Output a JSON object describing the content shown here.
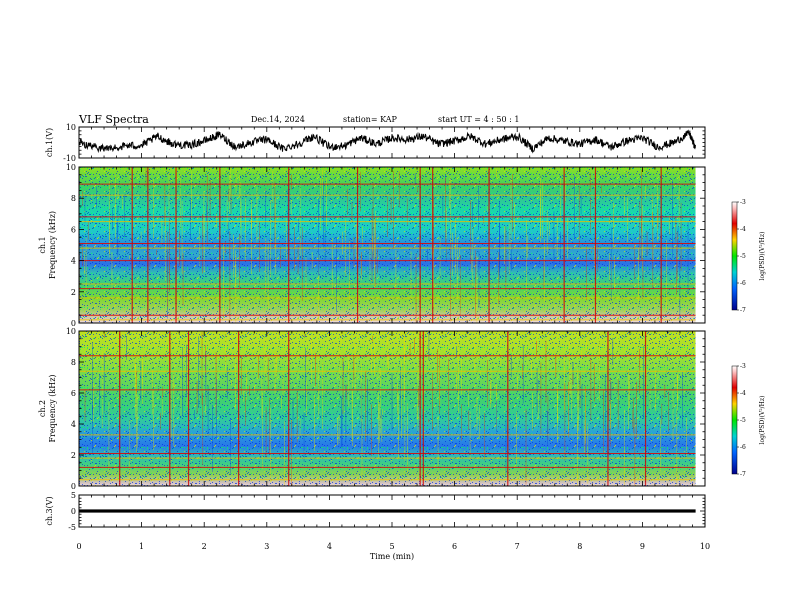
{
  "header": {
    "title": "VLF Spectra",
    "date": "Dec.14, 2024",
    "station": "station= KAP",
    "start": "start  UT =  4 : 50 : 1"
  },
  "colors": {
    "spectrogram_low": "#0000c8",
    "spectrogram_mid": "#00e6a0",
    "spectrogram_high": "#d20000",
    "trace": "#000000"
  },
  "chart_data": [
    {
      "type": "line",
      "name": "ch1-waveform",
      "ylabel": "ch.1(V)",
      "ylim": [
        -10,
        10
      ],
      "yticks": [
        {
          "value": 10,
          "label": "10"
        },
        {
          "value": -10,
          "label": "-10"
        }
      ],
      "x": [
        0,
        0.25,
        0.5,
        0.75,
        1.0,
        1.25,
        1.5,
        1.75,
        2.0,
        2.25,
        2.5,
        2.75,
        3.0,
        3.25,
        3.5,
        3.75,
        4.0,
        4.25,
        4.5,
        4.75,
        5.0,
        5.25,
        5.5,
        5.75,
        6.0,
        6.25,
        6.5,
        6.75,
        7.0,
        7.25,
        7.5,
        7.75,
        8.0,
        8.25,
        8.5,
        8.75,
        9.0,
        9.25,
        9.5,
        9.75,
        9.85
      ],
      "values": [
        0,
        -3,
        -4,
        -2,
        -2,
        4,
        -1,
        -2,
        1,
        5,
        -3,
        0,
        2,
        -4,
        -1,
        4,
        -3,
        -2,
        3,
        -1,
        3,
        2,
        4,
        -1,
        1,
        4,
        -1,
        2,
        4,
        -4,
        3,
        1,
        -1,
        2,
        -3,
        1,
        3,
        -3,
        0,
        6,
        -4
      ],
      "grid": false
    },
    {
      "type": "heatmap",
      "name": "ch1-spectrogram",
      "ylabel": "ch.1\nFrequency (kHz)",
      "ylim": [
        0,
        10
      ],
      "yticks": [
        0,
        2,
        4,
        6,
        8,
        10
      ],
      "x_range": [
        0,
        9.85
      ],
      "colorbar": {
        "label": "log(PSD)(V²/Hz)",
        "ticks": [
          -3,
          -4,
          -5,
          -6,
          -7
        ],
        "range": [
          -7,
          -3
        ]
      },
      "horizontal_lines_khz": [
        0.2,
        0.5,
        1.6,
        2.2,
        2.5,
        4.0,
        4.8,
        5.1,
        6.5,
        6.8,
        8.2,
        8.9
      ],
      "vertical_lines_min": [
        0.85,
        1.1,
        1.55,
        2.25,
        3.35,
        4.45,
        5.45,
        5.65,
        6.55,
        7.75,
        8.25,
        9.3
      ],
      "grid": false
    },
    {
      "type": "heatmap",
      "name": "ch2-spectrogram",
      "ylabel": "ch.2\nFrequency (kHz)",
      "ylim": [
        0,
        10
      ],
      "yticks": [
        0,
        2,
        4,
        6,
        8,
        10
      ],
      "x_range": [
        0,
        9.85
      ],
      "colorbar": {
        "label": "log(PSD)(V²/Hz)",
        "ticks": [
          -3,
          -4,
          -5,
          -6,
          -7
        ],
        "range": [
          -7,
          -3
        ]
      },
      "horizontal_lines_khz": [
        0.4,
        1.2,
        1.8,
        2.1,
        3.3,
        6.2,
        7.4,
        8.4
      ],
      "vertical_lines_min": [
        0.65,
        1.45,
        1.75,
        2.55,
        3.35,
        5.45,
        5.5,
        6.85,
        8.45,
        9.05
      ],
      "grid": false
    },
    {
      "type": "line",
      "name": "ch3-waveform",
      "ylabel": "ch.3(V)",
      "ylim": [
        -5,
        5
      ],
      "yticks": [
        {
          "value": 5,
          "label": "5"
        },
        {
          "value": 0,
          "label": "0"
        },
        {
          "value": -5,
          "label": "-5"
        }
      ],
      "x": [
        0,
        9.85
      ],
      "values": [
        0,
        0
      ],
      "band_halfwidth": 0.5,
      "xlabel": "Time  (min)",
      "xlim": [
        0,
        10
      ],
      "xticks": [
        0,
        1,
        2,
        3,
        4,
        5,
        6,
        7,
        8,
        9,
        10
      ],
      "grid": false
    }
  ]
}
